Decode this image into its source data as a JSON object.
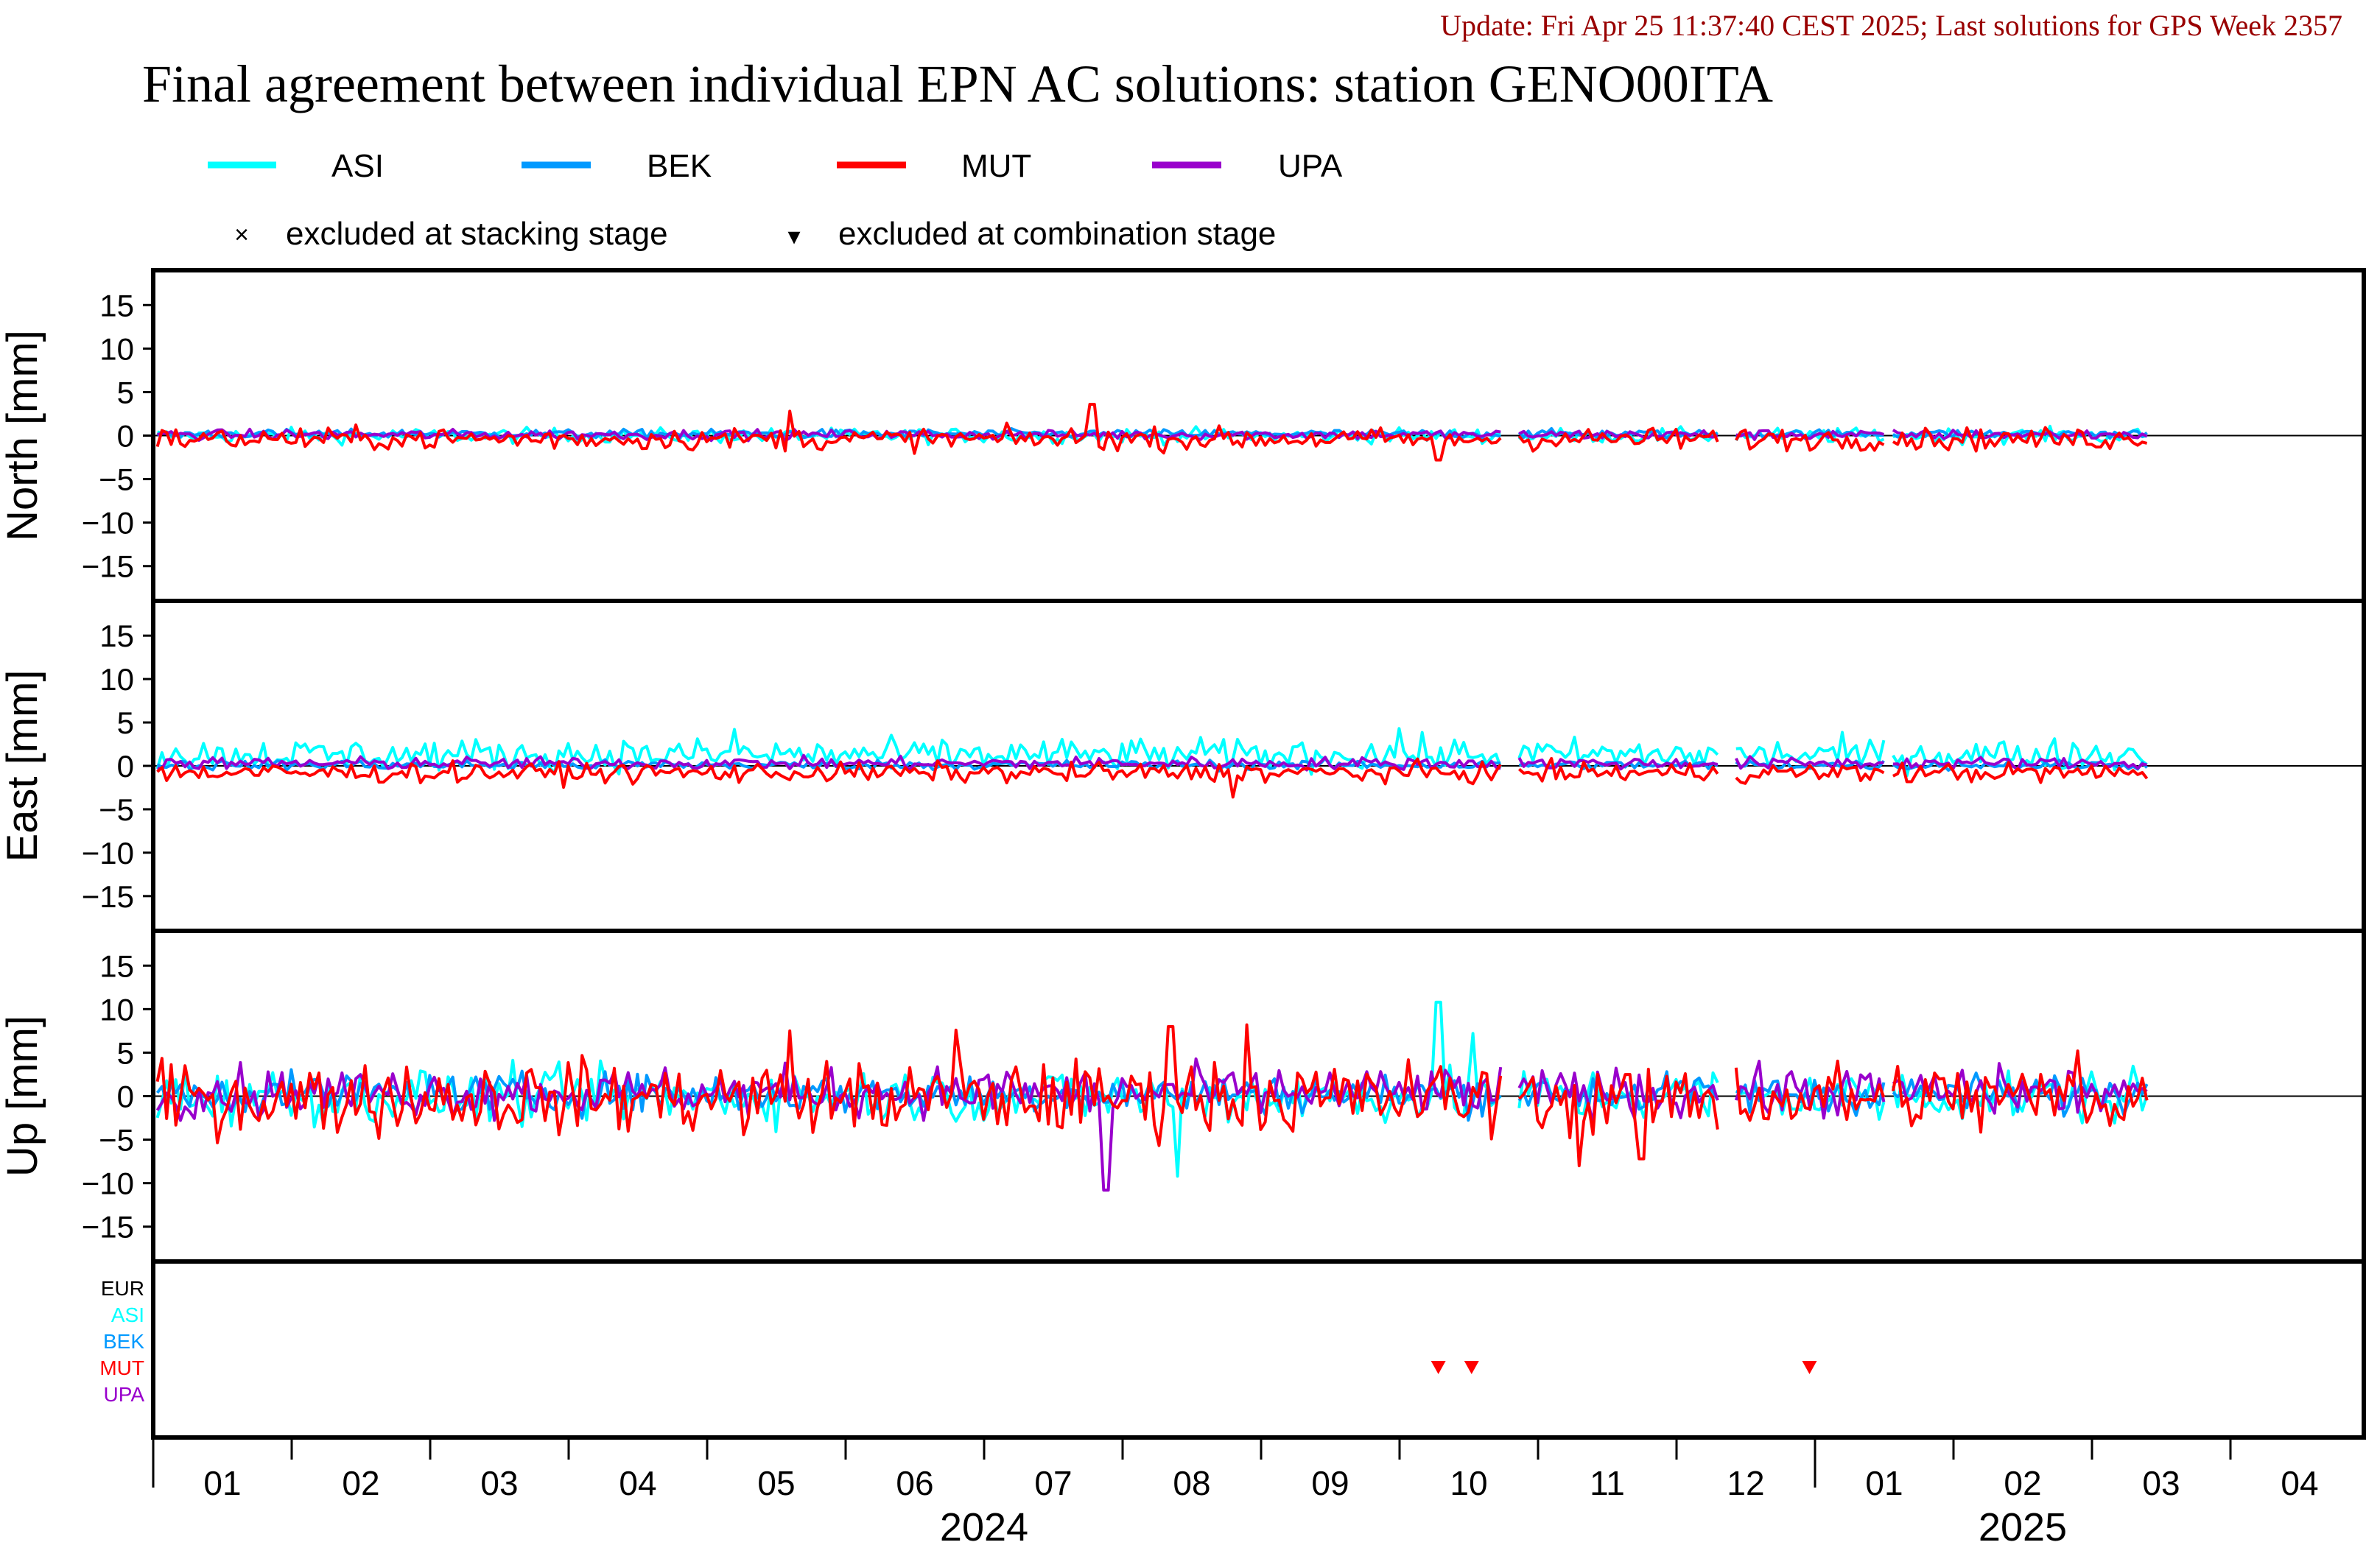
{
  "header": {
    "update_text": "Update: Fri Apr 25 11:37:40 CEST 2025; Last solutions for GPS Week 2357",
    "title": "Final agreement between individual EPN AC solutions: station GENO00ITA"
  },
  "legend": {
    "series": [
      {
        "name": "ASI",
        "color": "#00ffff"
      },
      {
        "name": "BEK",
        "color": "#0099ff"
      },
      {
        "name": "MUT",
        "color": "#ff0000"
      },
      {
        "name": "UPA",
        "color": "#9900cc"
      }
    ],
    "markers": [
      {
        "symbol": "×",
        "label": "excluded at stacking stage"
      },
      {
        "symbol": "▾",
        "label": "excluded at combination stage"
      }
    ]
  },
  "chart_data": {
    "type": "line",
    "panels": [
      {
        "ylabel": "North [mm]",
        "ylim": [
          -19,
          19
        ],
        "yticks": [
          15,
          10,
          5,
          0,
          -5,
          -10,
          -15
        ]
      },
      {
        "ylabel": "East [mm]",
        "ylim": [
          -19,
          19
        ],
        "yticks": [
          15,
          10,
          5,
          0,
          -5,
          -10,
          -15
        ]
      },
      {
        "ylabel": "Up [mm]",
        "ylim": [
          -19,
          19
        ],
        "yticks": [
          15,
          10,
          5,
          0,
          -5,
          -10,
          -15
        ]
      }
    ],
    "x_months": [
      "01",
      "02",
      "03",
      "04",
      "05",
      "06",
      "07",
      "08",
      "09",
      "10",
      "11",
      "12",
      "01",
      "02",
      "03",
      "04"
    ],
    "x_years": [
      {
        "label": "2024",
        "center_month_index": 6
      },
      {
        "label": "2025",
        "center_month_index": 13.5
      }
    ],
    "exclusion_rows": [
      {
        "name": "EUR",
        "color": "#000000"
      },
      {
        "name": "ASI",
        "color": "#00ffff"
      },
      {
        "name": "BEK",
        "color": "#0099ff"
      },
      {
        "name": "MUT",
        "color": "#ff0000"
      },
      {
        "name": "UPA",
        "color": "#9900cc"
      }
    ],
    "combination_exclusions": [
      {
        "series": "MUT",
        "month": 9.28
      },
      {
        "series": "MUT",
        "month": 9.52
      },
      {
        "series": "MUT",
        "month": 11.96
      }
    ],
    "data_span_months": [
      0,
      14.4
    ],
    "gaps_months": [
      [
        9.75,
        9.85
      ],
      [
        11.32,
        11.42
      ],
      [
        12.5,
        12.56
      ]
    ],
    "noise_amplitude_mm": {
      "North": {
        "ASI": 0.6,
        "BEK": 0.35,
        "MUT": 0.9,
        "UPA": 0.4
      },
      "East": {
        "ASI": 1.3,
        "BEK": 0.4,
        "MUT": 0.8,
        "UPA": 0.5
      },
      "Up": {
        "ASI": 2.2,
        "BEK": 1.6,
        "MUT": 3.0,
        "UPA": 2.0
      }
    },
    "offsets_mm": {
      "North": {
        "ASI": 0.0,
        "BEK": 0.2,
        "MUT": -0.4,
        "UPA": 0.1
      },
      "East": {
        "ASI": 1.3,
        "BEK": 0.1,
        "MUT": -0.8,
        "UPA": 0.3
      },
      "Up": {
        "ASI": 0.0,
        "BEK": 0.3,
        "MUT": -0.2,
        "UPA": 0.5
      }
    },
    "spikes_mm": [
      {
        "panel": "North",
        "series": "MUT",
        "month": 4.6,
        "value": 2.8
      },
      {
        "panel": "North",
        "series": "MUT",
        "month": 6.78,
        "value": 3.6
      },
      {
        "panel": "North",
        "series": "MUT",
        "month": 9.28,
        "value": -2.8
      },
      {
        "panel": "East",
        "series": "ASI",
        "month": 4.2,
        "value": 4.2
      },
      {
        "panel": "East",
        "series": "MUT",
        "month": 7.8,
        "value": -3.6
      },
      {
        "panel": "East",
        "series": "ASI",
        "month": 9.0,
        "value": 4.3
      },
      {
        "panel": "Up",
        "series": "MUT",
        "month": 4.6,
        "value": 7.5
      },
      {
        "panel": "Up",
        "series": "MUT",
        "month": 5.8,
        "value": 7.6
      },
      {
        "panel": "Up",
        "series": "MUT",
        "month": 7.35,
        "value": 8.0
      },
      {
        "panel": "Up",
        "series": "MUT",
        "month": 7.9,
        "value": 8.2
      },
      {
        "panel": "Up",
        "series": "UPA",
        "month": 6.88,
        "value": -10.8
      },
      {
        "panel": "Up",
        "series": "ASI",
        "month": 7.4,
        "value": -9.2
      },
      {
        "panel": "Up",
        "series": "ASI",
        "month": 9.28,
        "value": 10.8
      },
      {
        "panel": "Up",
        "series": "ASI",
        "month": 9.52,
        "value": 7.2
      },
      {
        "panel": "Up",
        "series": "MUT",
        "month": 10.3,
        "value": -8.0
      },
      {
        "panel": "Up",
        "series": "MUT",
        "month": 10.75,
        "value": -7.2
      },
      {
        "panel": "Up",
        "series": "MUT",
        "month": 13.9,
        "value": 5.2
      }
    ]
  }
}
